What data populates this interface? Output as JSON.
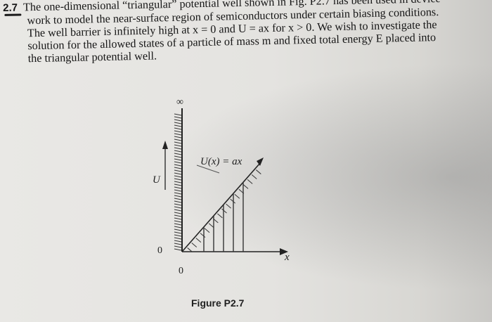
{
  "problem": {
    "number": "2.7",
    "lines": [
      "The one-dimensional “triangular” potential well shown in Fig. P2.7 has been used in device",
      "work to model the near-surface region of semiconductors under certain biasing conditions.",
      "The well barrier is infinitely high at x = 0 and U = ax for x > 0. We wish to investigate the",
      "solution for the allowed states of a particle of mass m and fixed total energy E placed into",
      "the triangular potential well."
    ]
  },
  "figure": {
    "infinity_label": "∞",
    "u_label": "U",
    "zero_y_label": "0",
    "zero_x_label": "0",
    "x_label": "x",
    "potential_label": "U(x) = ax",
    "caption": "Figure P2.7"
  }
}
